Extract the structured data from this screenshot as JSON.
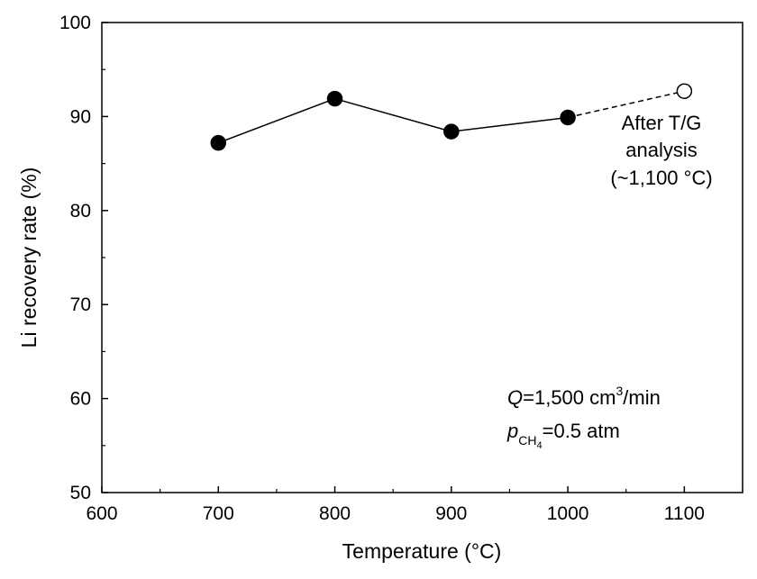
{
  "chart_data": {
    "type": "line",
    "xlabel": "Temperature (°C)",
    "ylabel": "Li recovery rate (%)",
    "xlim": [
      600,
      1150
    ],
    "ylim": [
      50,
      100
    ],
    "x_ticks": [
      600,
      700,
      800,
      900,
      1000,
      1100
    ],
    "y_ticks": [
      50,
      60,
      70,
      80,
      90,
      100
    ],
    "x_minor_ticks": [
      650,
      750,
      850,
      950,
      1050,
      1150
    ],
    "y_minor_ticks": [
      55,
      65,
      75,
      85,
      95
    ],
    "series": [
      {
        "name": "Li recovery rate",
        "marker": "filled-circle",
        "line": "solid",
        "x": [
          700,
          800,
          900,
          1000
        ],
        "y": [
          87.2,
          91.9,
          88.4,
          89.9
        ]
      },
      {
        "name": "After T/G analysis",
        "marker": "open-circle",
        "line": "dashed",
        "x": [
          1000,
          1100
        ],
        "y": [
          89.9,
          92.7
        ],
        "marker_points": [
          1
        ]
      }
    ],
    "annotations": {
      "after_tg": [
        "After T/G",
        "analysis",
        "(~1,100 °C)"
      ],
      "conditions": {
        "q_symbol": "Q",
        "q_value": "=1,500 cm",
        "q_sup": "3",
        "q_unit": "/min",
        "p_symbol": "p",
        "p_sub": "CH",
        "p_subsub": "4",
        "p_value": "=0.5 atm"
      }
    },
    "colors": {
      "marker": "#000000",
      "line": "#000000",
      "open_marker_fill": "#ffffff"
    }
  }
}
